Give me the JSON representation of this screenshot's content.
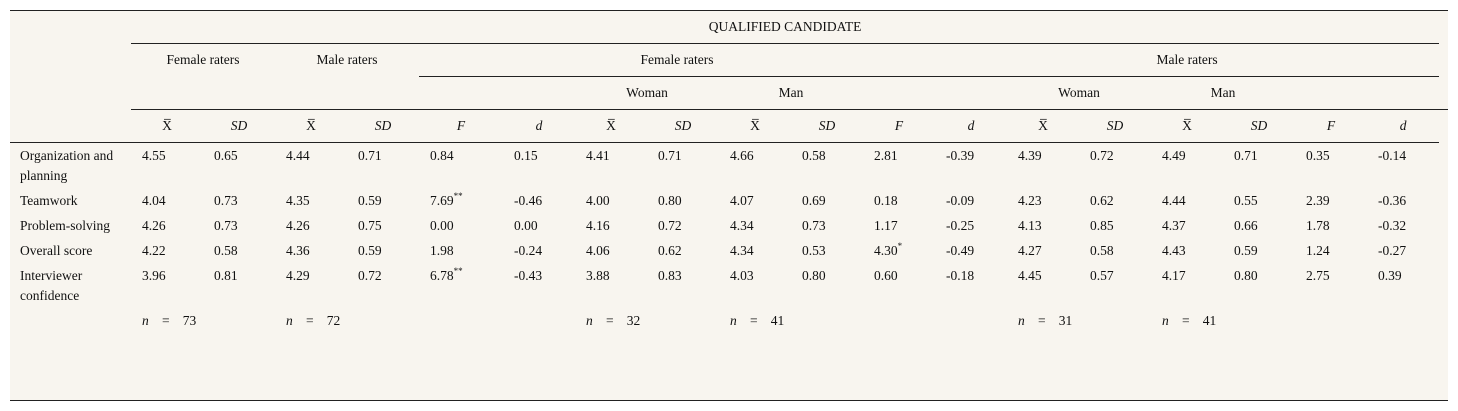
{
  "table": {
    "title": "QUALIFIED CANDIDATE",
    "group_left_female": "Female raters",
    "group_left_male": "Male raters",
    "group_right_female": "Female raters",
    "group_right_male": "Male raters",
    "woman": "Woman",
    "man": "Man",
    "col_mean": "X̅",
    "col_sd": "SD",
    "col_f": "F",
    "col_d": "d",
    "rows": [
      {
        "label": "Organization and planning",
        "vals": [
          "4.55",
          "0.65",
          "4.44",
          "0.71",
          "0.84",
          "0.15",
          "4.41",
          "0.71",
          "4.66",
          "0.58",
          "2.81",
          "-0.39",
          "4.39",
          "0.72",
          "4.49",
          "0.71",
          "0.35",
          "-0.14"
        ],
        "sups": {}
      },
      {
        "label": "Teamwork",
        "vals": [
          "4.04",
          "0.73",
          "4.35",
          "0.59",
          "7.69",
          "-0.46",
          "4.00",
          "0.80",
          "4.07",
          "0.69",
          "0.18",
          "-0.09",
          "4.23",
          "0.62",
          "4.44",
          "0.55",
          "2.39",
          "-0.36"
        ],
        "sups": {
          "4": "**"
        }
      },
      {
        "label": "Problem-solving",
        "vals": [
          "4.26",
          "0.73",
          "4.26",
          "0.75",
          "0.00",
          "0.00",
          "4.16",
          "0.72",
          "4.34",
          "0.73",
          "1.17",
          "-0.25",
          "4.13",
          "0.85",
          "4.37",
          "0.66",
          "1.78",
          "-0.32"
        ],
        "sups": {}
      },
      {
        "label": "Overall score",
        "vals": [
          "4.22",
          "0.58",
          "4.36",
          "0.59",
          "1.98",
          "-0.24",
          "4.06",
          "0.62",
          "4.34",
          "0.53",
          "4.30",
          "-0.49",
          "4.27",
          "0.58",
          "4.43",
          "0.59",
          "1.24",
          "-0.27"
        ],
        "sups": {
          "10": "*"
        }
      },
      {
        "label": "Interviewer confidence",
        "vals": [
          "3.96",
          "0.81",
          "4.29",
          "0.72",
          "6.78",
          "-0.43",
          "3.88",
          "0.83",
          "4.03",
          "0.80",
          "0.60",
          "-0.18",
          "4.45",
          "0.57",
          "4.17",
          "0.80",
          "2.75",
          "0.39"
        ],
        "sups": {
          "4": "**"
        }
      }
    ],
    "n_row": {
      "n_symbol": "n",
      "eq": "=",
      "female_raters": "73",
      "male_raters": "72",
      "female_woman": "32",
      "female_man": "41",
      "male_woman": "31",
      "male_man": "41"
    }
  }
}
